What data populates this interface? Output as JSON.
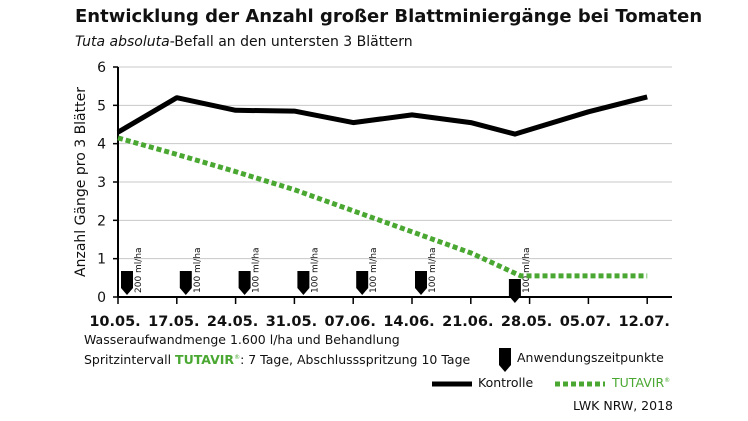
{
  "chart_data": {
    "type": "line",
    "title": "Entwicklung der Anzahl großer Blattminiergänge bei Tomaten",
    "subtitle_italic": "Tuta absoluta",
    "subtitle_rest": "-Befall an den untersten 3 Blättern",
    "ylabel": "Anzahl Gänge pro 3 Blätter",
    "xlabel": "",
    "ylim": [
      0,
      6
    ],
    "yticks": [
      "0",
      "1",
      "2",
      "3",
      "4",
      "5",
      "6"
    ],
    "categories": [
      "10.05.",
      "17.05.",
      "24.05.",
      "31.05.",
      "07.06.",
      "14.06.",
      "21.06.",
      "28.05.",
      "05.07.",
      "12.07."
    ],
    "grid": true,
    "series": [
      {
        "name": "Kontrolle",
        "color": "#000000",
        "style": "solid",
        "points": [
          [
            0,
            4.3
          ],
          [
            1,
            5.2
          ],
          [
            2,
            4.87
          ],
          [
            3,
            4.85
          ],
          [
            4,
            4.55
          ],
          [
            5,
            4.75
          ],
          [
            6,
            4.55
          ],
          [
            6.75,
            4.25
          ],
          [
            8,
            4.83
          ],
          [
            9,
            5.22
          ]
        ]
      },
      {
        "name": "TUTAVIR",
        "color": "#4aa832",
        "style": "dotted",
        "points": [
          [
            0,
            4.15
          ],
          [
            1,
            3.72
          ],
          [
            2,
            3.27
          ],
          [
            3,
            2.8
          ],
          [
            4,
            2.25
          ],
          [
            5,
            1.7
          ],
          [
            6,
            1.15
          ],
          [
            6.85,
            0.55
          ],
          [
            9,
            0.55
          ]
        ]
      }
    ],
    "applications": [
      {
        "x": 0,
        "dose": "200 ml/ha"
      },
      {
        "x": 1,
        "dose": "100 ml/ha"
      },
      {
        "x": 2,
        "dose": "100 ml/ha"
      },
      {
        "x": 3,
        "dose": "100 ml/ha"
      },
      {
        "x": 4,
        "dose": "100 ml/ha"
      },
      {
        "x": 5,
        "dose": "100 ml/ha"
      },
      {
        "x": 6.75,
        "dose": "100 ml/ha"
      }
    ],
    "legend": {
      "kontrolle": "Kontrolle",
      "tutavir": "TUTAVIR",
      "reg": "®",
      "marker_label": "Anwendungszeitpunkte",
      "placement": "bottom-right"
    }
  },
  "notes": {
    "line1": "Wasseraufwandmenge 1.600 l/ha und Behandlung",
    "line2_a": "Spritzintervall ",
    "line2_brand": "TUTAVIR",
    "line2_reg": "®",
    "line2_b": ": 7 Tage, Abschlussspritzung 10 Tage",
    "source": "LWK NRW, 2018"
  }
}
